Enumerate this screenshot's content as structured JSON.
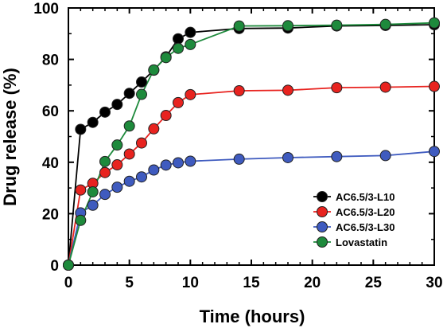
{
  "chart_data": {
    "type": "line",
    "xlabel": "Time (hours)",
    "ylabel": "Drug release (%)",
    "xlim": [
      0,
      30
    ],
    "ylim": [
      0,
      100
    ],
    "xticks": [
      0,
      5,
      10,
      15,
      20,
      25,
      30
    ],
    "yticks": [
      0,
      20,
      40,
      60,
      80,
      100
    ],
    "grid": false,
    "legend_position": "lower-right",
    "series": [
      {
        "name": "AC6.5/3-L10",
        "color": "#000000",
        "points": [
          [
            0,
            0
          ],
          [
            1,
            52.8
          ],
          [
            2,
            55.5
          ],
          [
            3,
            59.5
          ],
          [
            4,
            62.5
          ],
          [
            5,
            66.8
          ],
          [
            6,
            71.2
          ],
          [
            7,
            75.8
          ],
          [
            8,
            81
          ],
          [
            9,
            88
          ],
          [
            10,
            90.5
          ],
          [
            14,
            92
          ],
          [
            18,
            92.2
          ],
          [
            22,
            93
          ],
          [
            26,
            93.2
          ],
          [
            30,
            93.5
          ]
        ]
      },
      {
        "name": "AC6.5/3-L20",
        "color": "#e8231f",
        "points": [
          [
            0,
            0
          ],
          [
            1,
            29.2
          ],
          [
            2,
            31.8
          ],
          [
            3,
            36
          ],
          [
            4,
            39
          ],
          [
            5,
            43.2
          ],
          [
            6,
            47.5
          ],
          [
            7,
            53
          ],
          [
            8,
            58.2
          ],
          [
            9,
            63.2
          ],
          [
            10,
            66.3
          ],
          [
            14,
            67.8
          ],
          [
            18,
            68
          ],
          [
            22,
            69
          ],
          [
            26,
            69.2
          ],
          [
            30,
            69.5
          ]
        ]
      },
      {
        "name": "AC6.5/3-L30",
        "color": "#3f5bbf",
        "points": [
          [
            0,
            0
          ],
          [
            1,
            20.3
          ],
          [
            2,
            23.3
          ],
          [
            3,
            27.5
          ],
          [
            4,
            30.3
          ],
          [
            5,
            32.6
          ],
          [
            6,
            34.3
          ],
          [
            7,
            37
          ],
          [
            8,
            38.9
          ],
          [
            9,
            39.8
          ],
          [
            10,
            40.4
          ],
          [
            14,
            41.2
          ],
          [
            18,
            41.8
          ],
          [
            22,
            42.2
          ],
          [
            26,
            42.6
          ],
          [
            30,
            44.2
          ]
        ]
      },
      {
        "name": "Lovastatin",
        "color": "#1e8a3c",
        "points": [
          [
            0,
            0
          ],
          [
            1,
            17.4
          ],
          [
            2,
            28.5
          ],
          [
            3,
            40.3
          ],
          [
            4,
            46.7
          ],
          [
            5,
            54.1
          ],
          [
            6,
            66.4
          ],
          [
            7,
            75.9
          ],
          [
            8,
            80.7
          ],
          [
            9,
            84.3
          ],
          [
            10,
            85.8
          ],
          [
            14,
            93
          ],
          [
            18,
            93.1
          ],
          [
            22,
            93.3
          ],
          [
            26,
            93.6
          ],
          [
            30,
            94.2
          ]
        ]
      }
    ]
  }
}
